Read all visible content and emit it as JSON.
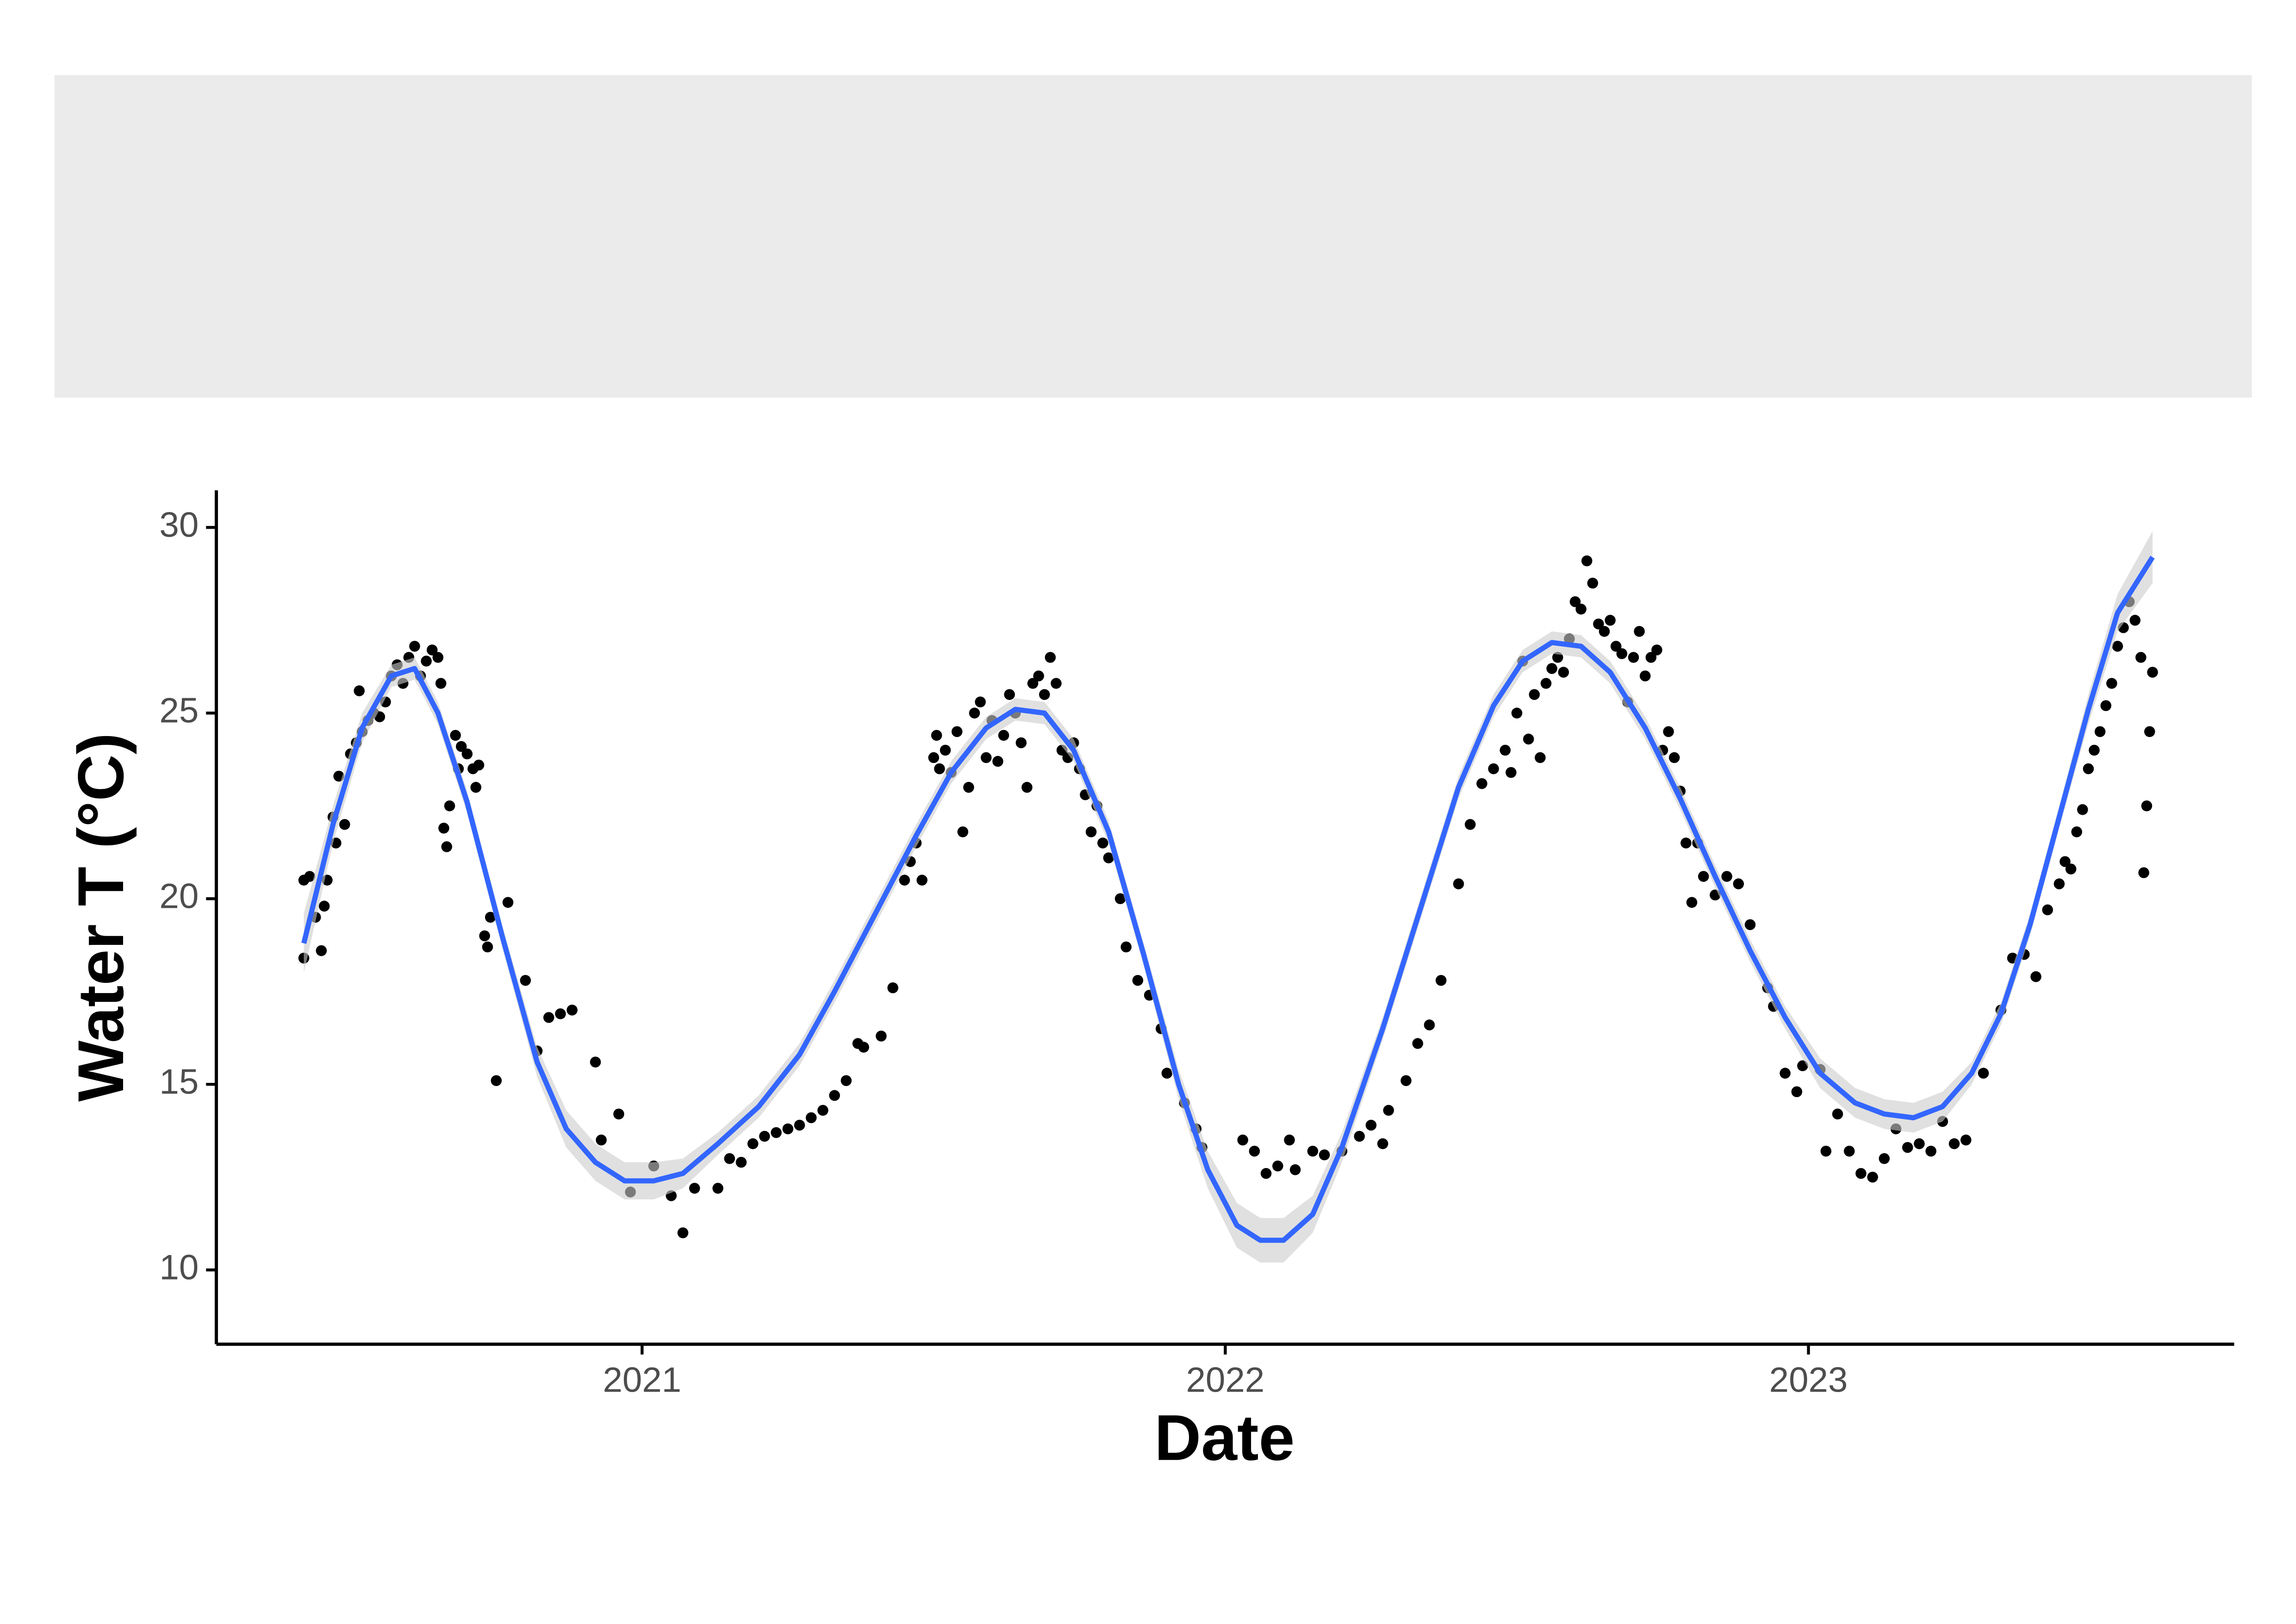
{
  "chart_data": {
    "type": "scatter",
    "x_label": "Date",
    "y_label": "Water T (°C)",
    "xlim": [
      2020.27,
      2023.73
    ],
    "ylim": [
      8.0,
      31.0
    ],
    "xticks": [
      2021,
      2022,
      2023
    ],
    "yticks": [
      10,
      15,
      20,
      25,
      30
    ],
    "grid": false,
    "point_color": "#000000",
    "line_color": "#3366ff",
    "band_color": "#cccccc",
    "points": {
      "x": [
        2020.42,
        2020.42,
        2020.43,
        2020.44,
        2020.45,
        2020.455,
        2020.46,
        2020.47,
        2020.475,
        2020.48,
        2020.49,
        2020.5,
        2020.51,
        2020.515,
        2020.52,
        2020.53,
        2020.54,
        2020.55,
        2020.56,
        2020.57,
        2020.58,
        2020.59,
        2020.6,
        2020.61,
        2020.62,
        2020.63,
        2020.64,
        2020.65,
        2020.655,
        2020.66,
        2020.665,
        2020.67,
        2020.68,
        2020.685,
        2020.69,
        2020.7,
        2020.71,
        2020.715,
        2020.72,
        2020.73,
        2020.735,
        2020.74,
        2020.75,
        2020.77,
        2020.8,
        2020.82,
        2020.84,
        2020.86,
        2020.88,
        2020.92,
        2020.93,
        2020.96,
        2020.98,
        2021.02,
        2021.05,
        2021.07,
        2021.09,
        2021.13,
        2021.15,
        2021.17,
        2021.19,
        2021.21,
        2021.23,
        2021.25,
        2021.27,
        2021.29,
        2021.31,
        2021.33,
        2021.35,
        2021.37,
        2021.38,
        2021.41,
        2021.43,
        2021.45,
        2021.46,
        2021.47,
        2021.48,
        2021.5,
        2021.505,
        2021.51,
        2021.52,
        2021.53,
        2021.54,
        2021.55,
        2021.56,
        2021.57,
        2021.58,
        2021.59,
        2021.6,
        2021.61,
        2021.62,
        2021.63,
        2021.64,
        2021.65,
        2021.66,
        2021.67,
        2021.68,
        2021.69,
        2021.7,
        2021.71,
        2021.72,
        2021.73,
        2021.74,
        2021.75,
        2021.76,
        2021.77,
        2021.78,
        2021.79,
        2021.8,
        2021.82,
        2021.83,
        2021.85,
        2021.87,
        2021.89,
        2021.9,
        2021.93,
        2021.95,
        2021.96,
        2022.03,
        2022.05,
        2022.07,
        2022.09,
        2022.11,
        2022.12,
        2022.15,
        2022.17,
        2022.2,
        2022.23,
        2022.25,
        2022.27,
        2022.28,
        2022.31,
        2022.33,
        2022.35,
        2022.37,
        2022.4,
        2022.42,
        2022.44,
        2022.46,
        2022.48,
        2022.49,
        2022.5,
        2022.51,
        2022.52,
        2022.53,
        2022.54,
        2022.55,
        2022.56,
        2022.57,
        2022.58,
        2022.59,
        2022.6,
        2022.61,
        2022.62,
        2022.63,
        2022.64,
        2022.65,
        2022.66,
        2022.67,
        2022.68,
        2022.69,
        2022.7,
        2022.71,
        2022.72,
        2022.73,
        2022.74,
        2022.75,
        2022.76,
        2022.77,
        2022.78,
        2022.79,
        2022.8,
        2022.81,
        2022.82,
        2022.84,
        2022.86,
        2022.88,
        2022.9,
        2022.93,
        2022.94,
        2022.96,
        2022.98,
        2022.99,
        2023.02,
        2023.03,
        2023.05,
        2023.07,
        2023.09,
        2023.11,
        2023.13,
        2023.15,
        2023.17,
        2023.19,
        2023.21,
        2023.23,
        2023.25,
        2023.27,
        2023.3,
        2023.33,
        2023.35,
        2023.37,
        2023.39,
        2023.41,
        2023.43,
        2023.44,
        2023.45,
        2023.46,
        2023.47,
        2023.48,
        2023.49,
        2023.5,
        2023.51,
        2023.52,
        2023.53,
        2023.54,
        2023.55,
        2023.56,
        2023.57,
        2023.575,
        2023.58,
        2023.585,
        2023.59
      ],
      "values": [
        20.5,
        18.4,
        20.6,
        19.5,
        18.6,
        19.8,
        20.5,
        22.2,
        21.5,
        23.3,
        22.0,
        23.9,
        24.2,
        25.6,
        24.5,
        24.8,
        25.0,
        24.9,
        25.3,
        26.0,
        26.3,
        25.8,
        26.5,
        26.8,
        26.0,
        26.4,
        26.7,
        26.5,
        25.8,
        21.9,
        21.4,
        22.5,
        24.4,
        23.5,
        24.1,
        23.9,
        23.5,
        23.0,
        23.6,
        19.0,
        18.7,
        19.5,
        15.1,
        19.9,
        17.8,
        15.9,
        16.8,
        16.9,
        17.0,
        15.6,
        13.5,
        14.2,
        12.1,
        12.8,
        12.0,
        11.0,
        12.2,
        12.2,
        13.0,
        12.9,
        13.4,
        13.6,
        13.7,
        13.8,
        13.9,
        14.1,
        14.3,
        14.7,
        15.1,
        16.1,
        16.0,
        16.3,
        17.6,
        20.5,
        21.0,
        21.5,
        20.5,
        23.8,
        24.4,
        23.5,
        24.0,
        23.4,
        24.5,
        21.8,
        23.0,
        25.0,
        25.3,
        23.8,
        24.8,
        23.7,
        24.4,
        25.5,
        25.0,
        24.2,
        23.0,
        25.8,
        26.0,
        25.5,
        26.5,
        25.8,
        24.0,
        23.8,
        24.2,
        23.5,
        22.8,
        21.8,
        22.5,
        21.5,
        21.1,
        20.0,
        18.7,
        17.8,
        17.4,
        16.5,
        15.3,
        14.5,
        13.8,
        13.3,
        13.5,
        13.2,
        12.6,
        12.8,
        13.5,
        12.7,
        13.2,
        13.1,
        13.2,
        13.6,
        13.9,
        13.4,
        14.3,
        15.1,
        16.1,
        16.6,
        17.8,
        20.4,
        22.0,
        23.1,
        23.5,
        24.0,
        23.4,
        25.0,
        26.4,
        24.3,
        25.5,
        23.8,
        25.8,
        26.2,
        26.5,
        26.1,
        27.0,
        28.0,
        27.8,
        29.1,
        28.5,
        27.4,
        27.2,
        27.5,
        26.8,
        26.6,
        25.3,
        26.5,
        27.2,
        26.0,
        26.5,
        26.7,
        24.0,
        24.5,
        23.8,
        22.9,
        21.5,
        19.9,
        21.5,
        20.6,
        20.1,
        20.6,
        20.4,
        19.3,
        17.6,
        17.1,
        15.3,
        14.8,
        15.5,
        15.4,
        13.2,
        14.2,
        13.2,
        12.6,
        12.5,
        13.0,
        13.8,
        13.3,
        13.4,
        13.2,
        14.0,
        13.4,
        13.5,
        15.3,
        17.0,
        18.4,
        18.5,
        17.9,
        19.7,
        20.4,
        21.0,
        20.8,
        21.8,
        22.4,
        23.5,
        24.0,
        24.5,
        25.2,
        25.8,
        26.8,
        27.3,
        28.0,
        27.5,
        26.5,
        20.7,
        22.5,
        24.5,
        26.1
      ]
    },
    "smooth": {
      "x": [
        2020.42,
        2020.47,
        2020.52,
        2020.57,
        2020.61,
        2020.65,
        2020.7,
        2020.76,
        2020.82,
        2020.87,
        2020.92,
        2020.97,
        2021.02,
        2021.07,
        2021.13,
        2021.2,
        2021.27,
        2021.33,
        2021.4,
        2021.47,
        2021.53,
        2021.59,
        2021.64,
        2021.69,
        2021.74,
        2021.8,
        2021.86,
        2021.92,
        2021.97,
        2022.02,
        2022.06,
        2022.1,
        2022.15,
        2022.2,
        2022.27,
        2022.34,
        2022.4,
        2022.46,
        2022.51,
        2022.56,
        2022.61,
        2022.66,
        2022.72,
        2022.78,
        2022.84,
        2022.9,
        2022.96,
        2023.02,
        2023.08,
        2023.13,
        2023.18,
        2023.23,
        2023.28,
        2023.33,
        2023.38,
        2023.43,
        2023.48,
        2023.53,
        2023.59
      ],
      "values": [
        18.8,
        22.0,
        24.6,
        26.0,
        26.2,
        25.0,
        22.6,
        19.0,
        15.6,
        13.8,
        12.9,
        12.4,
        12.4,
        12.6,
        13.4,
        14.4,
        15.8,
        17.5,
        19.6,
        21.7,
        23.4,
        24.6,
        25.1,
        25.0,
        24.0,
        21.8,
        18.5,
        15.0,
        12.7,
        11.2,
        10.8,
        10.8,
        11.5,
        13.3,
        16.5,
        20.0,
        23.0,
        25.2,
        26.4,
        26.9,
        26.8,
        26.1,
        24.6,
        22.7,
        20.6,
        18.6,
        16.8,
        15.3,
        14.5,
        14.2,
        14.1,
        14.4,
        15.3,
        16.9,
        19.3,
        22.2,
        25.1,
        27.7,
        29.2
      ],
      "upper": [
        19.6,
        22.5,
        25.0,
        26.3,
        26.5,
        25.3,
        22.9,
        19.3,
        16.0,
        14.3,
        13.4,
        12.9,
        12.9,
        13.0,
        13.7,
        14.7,
        16.1,
        17.8,
        19.9,
        22.0,
        23.7,
        24.9,
        25.4,
        25.3,
        24.3,
        22.1,
        18.8,
        15.4,
        13.2,
        11.8,
        11.4,
        11.4,
        12.0,
        13.7,
        16.8,
        20.3,
        23.3,
        25.5,
        26.7,
        27.2,
        27.1,
        26.4,
        24.9,
        23.0,
        20.9,
        18.9,
        17.1,
        15.7,
        14.9,
        14.6,
        14.5,
        14.8,
        15.6,
        17.2,
        19.6,
        22.5,
        25.5,
        28.2,
        29.9
      ],
      "lower": [
        18.0,
        21.5,
        24.2,
        25.7,
        25.9,
        24.7,
        22.3,
        18.7,
        15.2,
        13.3,
        12.4,
        11.9,
        11.9,
        12.2,
        13.1,
        14.1,
        15.5,
        17.2,
        19.3,
        21.4,
        23.1,
        24.3,
        24.8,
        24.7,
        23.7,
        21.5,
        18.2,
        14.6,
        12.2,
        10.6,
        10.2,
        10.2,
        11.0,
        12.9,
        16.2,
        19.7,
        22.7,
        24.9,
        26.1,
        26.6,
        26.5,
        25.8,
        24.3,
        22.4,
        20.3,
        18.3,
        16.5,
        14.9,
        14.1,
        13.8,
        13.7,
        14.0,
        15.0,
        16.6,
        19.0,
        21.9,
        24.7,
        27.2,
        28.5
      ]
    }
  }
}
